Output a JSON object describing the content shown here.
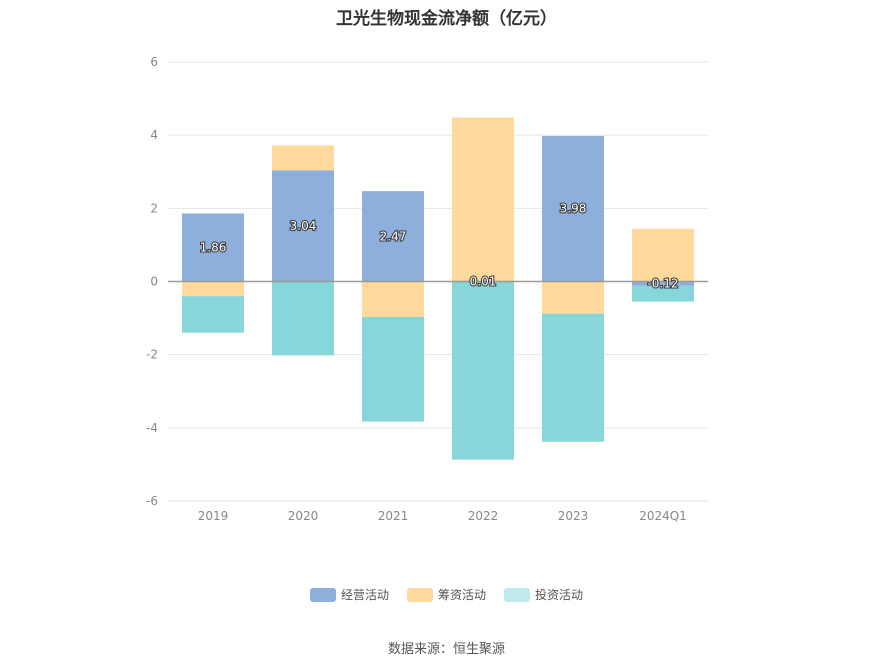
{
  "chart_data": {
    "type": "bar",
    "stacked": true,
    "title": "卫光生物现金流净额（亿元）",
    "categories": [
      "2019",
      "2020",
      "2021",
      "2022",
      "2023",
      "2024Q1"
    ],
    "yticks": [
      "6",
      "4",
      "2",
      "0",
      "-2",
      "-4",
      "-6"
    ],
    "ylim": [
      -6,
      6
    ],
    "series": [
      {
        "name": "经营活动",
        "color": "#8eaedc",
        "values": [
          1.86,
          3.04,
          2.47,
          0.01,
          3.98,
          -0.12
        ],
        "labels": [
          "1.86",
          "3.04",
          "2.47",
          "0.01",
          "3.98",
          "-0.12"
        ]
      },
      {
        "name": "筹资活动",
        "color": "#fed99b",
        "values": [
          -0.4,
          0.68,
          -0.97,
          4.47,
          -0.88,
          1.44
        ]
      },
      {
        "name": "投资活动",
        "color": "#87d6da",
        "values": [
          -1.0,
          -2.02,
          -2.86,
          -4.87,
          -3.5,
          -0.43
        ]
      }
    ],
    "grid": true,
    "legend_position": "bottom"
  },
  "legend": {
    "items": [
      {
        "label": "经营活动",
        "color": "#8eaedc"
      },
      {
        "label": "筹资活动",
        "color": "#fed99b"
      },
      {
        "label": "投资活动",
        "color": "#c0e9ec"
      }
    ]
  },
  "source": "数据来源：恒生聚源"
}
